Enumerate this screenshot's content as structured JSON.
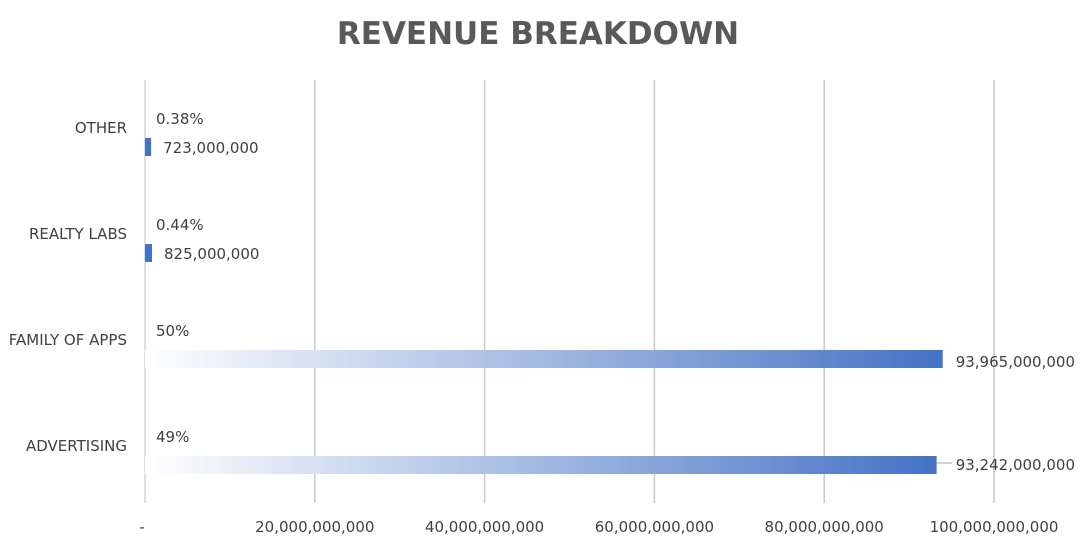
{
  "chart_data": {
    "type": "bar",
    "orientation": "horizontal",
    "title": "REVENUE BREAKDOWN",
    "xlabel": "",
    "ylabel": "",
    "categories": [
      "OTHER",
      "REALTY LABS",
      "FAMILY OF APPS",
      "ADVERTISING"
    ],
    "values": [
      723000000,
      825000000,
      93965000000,
      93242000000
    ],
    "value_labels": [
      "723,000,000",
      "825,000,000",
      "93,965,000,000",
      "93,242,000,000"
    ],
    "percent_labels": [
      "0.38%",
      "0.44%",
      "50%",
      "49%"
    ],
    "xlim": [
      0,
      100000000000
    ],
    "x_ticks": [
      0,
      20000000000,
      40000000000,
      60000000000,
      80000000000,
      100000000000
    ],
    "x_tick_labels": [
      "-",
      "20,000,000,000",
      "40,000,000,000",
      "60,000,000,000",
      "80,000,000,000",
      "100,000,000,000"
    ],
    "grid": true,
    "legend": "none",
    "bar_color": "#4472C4",
    "bar_fade_color": "#ffffff"
  }
}
